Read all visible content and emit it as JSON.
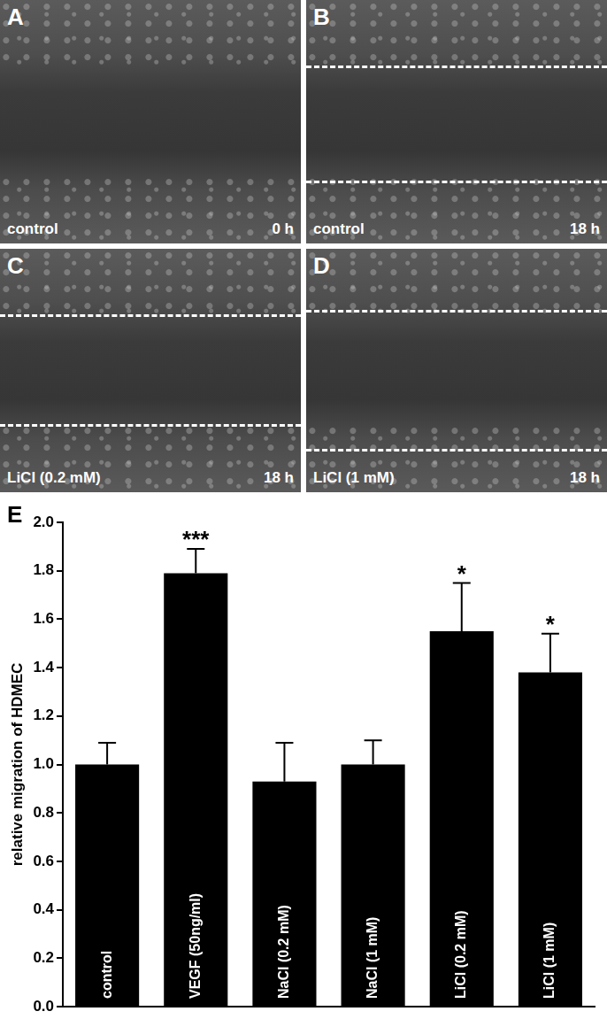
{
  "figure": {
    "panels": [
      {
        "letter": "A",
        "label": "control",
        "time": "0 h"
      },
      {
        "letter": "B",
        "label": "control",
        "time": "18 h"
      },
      {
        "letter": "C",
        "label": "LiCl (0.2 mM)",
        "time": "18 h"
      },
      {
        "letter": "D",
        "label": "LiCl (1 mM)",
        "time": "18 h"
      }
    ],
    "chart_letter": "E"
  },
  "chart_data": {
    "type": "bar",
    "y_label": "relative migration of HDMEC",
    "categories": [
      "control",
      "VEGF (50ng/ml)",
      "NaCl (0.2 mM)",
      "NaCl (1 mM)",
      "LiCl (0.2 mM)",
      "LiCl (1 mM)"
    ],
    "values": [
      1.0,
      1.79,
      0.93,
      1.0,
      1.55,
      1.38
    ],
    "errors": [
      0.09,
      0.1,
      0.16,
      0.1,
      0.2,
      0.16
    ],
    "significance": [
      null,
      "***",
      null,
      null,
      "*",
      "*"
    ],
    "color": "#000000",
    "ylim": [
      0,
      2.0
    ],
    "yticks": [
      {
        "value": 0,
        "label": "0.0"
      },
      {
        "value": 0.2,
        "label": "0.2"
      },
      {
        "value": 0.4,
        "label": "0.4"
      },
      {
        "value": 0.6,
        "label": "0.6"
      },
      {
        "value": 0.8,
        "label": "0.8"
      },
      {
        "value": 1.0,
        "label": "1.0"
      },
      {
        "value": 1.2,
        "label": "1.2"
      },
      {
        "value": 1.4,
        "label": "1.4"
      },
      {
        "value": 1.6,
        "label": "1.6"
      },
      {
        "value": 1.8,
        "label": "1.8"
      },
      {
        "value": 2.0,
        "label": "2.0"
      }
    ],
    "grid": false,
    "tick_labels": "y"
  }
}
